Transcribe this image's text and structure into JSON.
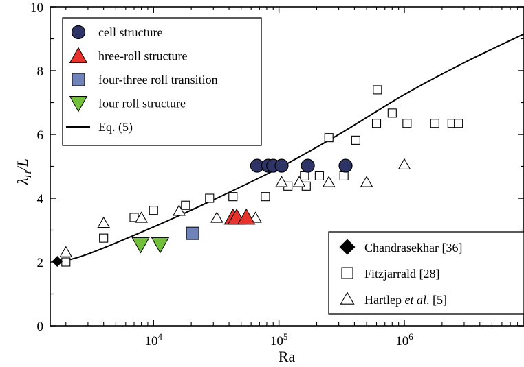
{
  "chart_data": {
    "type": "scatter",
    "x_scale": "log",
    "xlim": [
      1500,
      9000000
    ],
    "ylim": [
      0,
      10
    ],
    "xticks": [
      {
        "value": 10000,
        "base": "10",
        "exp": "4"
      },
      {
        "value": 100000,
        "base": "10",
        "exp": "5"
      },
      {
        "value": 1000000,
        "base": "10",
        "exp": "6"
      }
    ],
    "yticks": [
      {
        "value": 0,
        "label": "0"
      },
      {
        "value": 2,
        "label": "2"
      },
      {
        "value": 4,
        "label": "4"
      },
      {
        "value": 6,
        "label": "6"
      },
      {
        "value": 8,
        "label": "8"
      },
      {
        "value": 10,
        "label": "10"
      }
    ],
    "xlabel": "Ra",
    "ylabel": {
      "base": "λ",
      "sub": "H",
      "rest": "/L"
    },
    "grid": false,
    "legend_top": {
      "placement": "top-left",
      "entries": [
        {
          "ref": "cell",
          "label": "cell structure"
        },
        {
          "ref": "three",
          "label": " hree-roll structure"
        },
        {
          "ref": "transition",
          "label": "four-three roll transition"
        },
        {
          "ref": "four",
          "label": "four roll structure"
        },
        {
          "ref": "eq5",
          "label": "Eq. (5)"
        }
      ]
    },
    "legend_bottom": {
      "placement": "bottom-right",
      "entries": [
        {
          "ref": "chandra",
          "parts": [
            {
              "t": "Chandrasekhar [36]",
              "i": false
            }
          ]
        },
        {
          "ref": "fitz",
          "parts": [
            {
              "t": "Fitzjarrald  [28]",
              "i": false
            }
          ]
        },
        {
          "ref": "hartlep",
          "parts": [
            {
              "t": "Hartlep ",
              "i": false
            },
            {
              "t": "et al",
              "i": true
            },
            {
              "t": ". [5]",
              "i": false
            }
          ]
        }
      ]
    },
    "series": [
      {
        "id": "fitz",
        "name": "Fitzjarrald  [28]",
        "marker": "square-open",
        "points": [
          [
            2000,
            2.0
          ],
          [
            4000,
            2.75
          ],
          [
            7000,
            3.4
          ],
          [
            10000,
            3.62
          ],
          [
            18000,
            3.78
          ],
          [
            28000,
            4.0
          ],
          [
            43000,
            4.05
          ],
          [
            78000,
            4.05
          ],
          [
            118000,
            4.38
          ],
          [
            160000,
            4.7
          ],
          [
            165000,
            4.38
          ],
          [
            210000,
            4.7
          ],
          [
            250000,
            5.9
          ],
          [
            330000,
            4.7
          ],
          [
            410000,
            5.82
          ],
          [
            600000,
            6.35
          ],
          [
            610000,
            7.4
          ],
          [
            800000,
            6.67
          ],
          [
            1050000,
            6.35
          ],
          [
            1750000,
            6.35
          ],
          [
            2400000,
            6.35
          ],
          [
            2700000,
            6.35
          ]
        ]
      },
      {
        "id": "hartlep",
        "name": "Hartlep et al. [5]",
        "marker": "triangle-up-open",
        "points": [
          [
            2000,
            2.3
          ],
          [
            4000,
            3.22
          ],
          [
            8000,
            3.38
          ],
          [
            16000,
            3.6
          ],
          [
            32000,
            3.38
          ],
          [
            65000,
            3.38
          ],
          [
            105000,
            4.5
          ],
          [
            145000,
            4.5
          ],
          [
            250000,
            4.5
          ],
          [
            500000,
            4.5
          ],
          [
            1000000,
            5.05
          ]
        ]
      },
      {
        "id": "chandra",
        "name": "Chandrasekhar [36]",
        "marker": "diamond-filled",
        "color": "#000000",
        "points": [
          [
            1708,
            2.02
          ]
        ]
      },
      {
        "id": "cell",
        "name": "cell structure",
        "marker": "circle-filled",
        "color": "#2e3566",
        "points": [
          [
            67000,
            5.02
          ],
          [
            82000,
            5.02
          ],
          [
            90000,
            5.02
          ],
          [
            105000,
            5.02
          ],
          [
            170000,
            5.02
          ],
          [
            340000,
            5.02
          ]
        ]
      },
      {
        "id": "three",
        "name": "hree-roll structure",
        "marker": "triangle-up-filled",
        "color": "#e8332d",
        "points": [
          [
            43000,
            3.4
          ],
          [
            46000,
            3.4
          ],
          [
            55000,
            3.4
          ]
        ]
      },
      {
        "id": "transition",
        "name": "four-three roll transition",
        "marker": "square-filled",
        "color": "#6f83b8",
        "points": [
          [
            20500,
            2.9
          ]
        ]
      },
      {
        "id": "four",
        "name": "four roll structure",
        "marker": "triangle-down-filled",
        "color": "#72bf3c",
        "points": [
          [
            7900,
            2.55
          ],
          [
            11300,
            2.55
          ]
        ]
      }
    ],
    "curve": {
      "id": "eq5",
      "name": "Eq. (5)",
      "color": "#000000",
      "points": [
        [
          1700,
          1.98
        ],
        [
          3000,
          2.25
        ],
        [
          10000,
          3.1
        ],
        [
          30000,
          3.95
        ],
        [
          100000,
          4.95
        ],
        [
          300000,
          6.0
        ],
        [
          1000000,
          7.25
        ],
        [
          3000000,
          8.25
        ],
        [
          9000000,
          9.15
        ]
      ]
    }
  }
}
